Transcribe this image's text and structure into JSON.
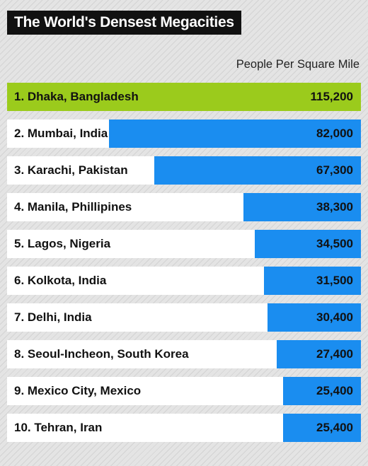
{
  "chart_data": {
    "type": "bar",
    "orientation": "horizontal",
    "title": "The World's Densest Megacities",
    "unit_label": "People Per Square Mile",
    "highlight_color": "#9bcb1c",
    "bar_color": "#1a8df0",
    "xlim": [
      0,
      115200
    ],
    "items": [
      {
        "label": "1. Dhaka, Bangladesh",
        "value": 115200,
        "display": "115,200"
      },
      {
        "label": "2. Mumbai, India",
        "value": 82000,
        "display": "82,000"
      },
      {
        "label": "3. Karachi, Pakistan",
        "value": 67300,
        "display": "67,300"
      },
      {
        "label": "4. Manila, Phillipines",
        "value": 38300,
        "display": "38,300"
      },
      {
        "label": "5. Lagos, Nigeria",
        "value": 34500,
        "display": "34,500"
      },
      {
        "label": "6. Kolkota, India",
        "value": 31500,
        "display": "31,500"
      },
      {
        "label": "7. Delhi, India",
        "value": 30400,
        "display": "30,400"
      },
      {
        "label": "8. Seoul-Incheon, South Korea",
        "value": 27400,
        "display": "27,400"
      },
      {
        "label": "9. Mexico City, Mexico",
        "value": 25400,
        "display": "25,400"
      },
      {
        "label": "10. Tehran, Iran",
        "value": 25400,
        "display": "25,400"
      }
    ]
  }
}
